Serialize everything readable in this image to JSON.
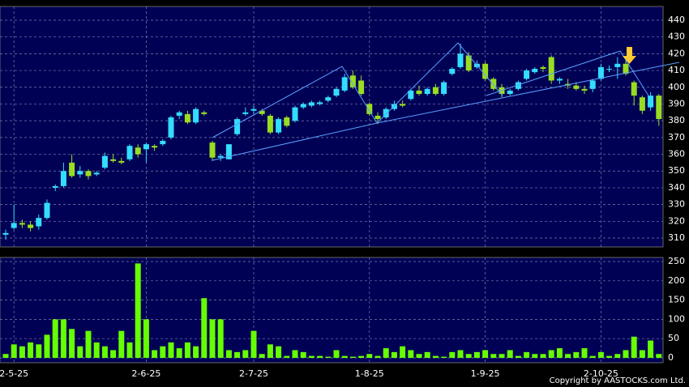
{
  "chart_data": {
    "type": "candlestick",
    "categories": [
      null,
      "2-5-25",
      null,
      null,
      null,
      null,
      null,
      null,
      null,
      null,
      null,
      null,
      null,
      null,
      null,
      null,
      null,
      "2-6-25",
      null,
      null,
      null,
      null,
      null,
      null,
      null,
      null,
      null,
      null,
      null,
      null,
      "2-7-25",
      null,
      null,
      null,
      null,
      null,
      null,
      null,
      null,
      null,
      null,
      null,
      null,
      null,
      "1-8-25",
      null,
      null,
      null,
      null,
      null,
      null,
      null,
      null,
      null,
      null,
      null,
      null,
      null,
      "1-9-25",
      null,
      null,
      null,
      null,
      null,
      null,
      null,
      null,
      null,
      null,
      null,
      null,
      null,
      "2-10-25",
      null,
      null,
      null,
      null,
      null,
      null,
      null
    ],
    "open": [
      312,
      316,
      319,
      318,
      317,
      322,
      340,
      341,
      355,
      348,
      350,
      348,
      352,
      357,
      356,
      357,
      364,
      363,
      365,
      366,
      370,
      383,
      384,
      379,
      385,
      367,
      358,
      357,
      372,
      384,
      386,
      386,
      383,
      373,
      382,
      380,
      388,
      389,
      390,
      392,
      395,
      398,
      407,
      404,
      390,
      383,
      382,
      387,
      390,
      393,
      398,
      396,
      400,
      396,
      408,
      412,
      419,
      412,
      414,
      405,
      400,
      396,
      399,
      405,
      409,
      412,
      418,
      404,
      402,
      401,
      399,
      399,
      405,
      411,
      412,
      414,
      403,
      394,
      388,
      395
    ],
    "high": [
      315,
      330,
      321,
      320,
      324,
      333,
      342,
      355,
      360,
      353,
      351,
      350,
      361,
      360,
      358,
      366,
      366,
      367,
      366,
      369,
      383,
      386,
      386,
      388,
      386,
      368,
      360,
      366,
      382,
      388,
      389,
      387,
      384,
      382,
      383,
      389,
      391,
      392,
      392,
      395,
      400,
      408,
      410,
      407,
      391,
      385,
      388,
      392,
      392,
      399,
      401,
      400,
      402,
      404,
      412,
      426,
      421,
      416,
      415,
      406,
      402,
      399,
      404,
      411,
      412,
      413,
      419,
      406,
      405,
      403,
      401,
      405,
      414,
      413,
      418,
      416,
      404,
      395,
      397,
      396
    ],
    "low": [
      309,
      315,
      316,
      314,
      315,
      321,
      338,
      340,
      346,
      346,
      345,
      347,
      351,
      355,
      354,
      356,
      358,
      355,
      362,
      365,
      369,
      381,
      378,
      378,
      383,
      356,
      356,
      357,
      371,
      383,
      384,
      383,
      372,
      372,
      376,
      379,
      387,
      388,
      389,
      391,
      394,
      397,
      399,
      395,
      383,
      378,
      381,
      386,
      388,
      392,
      395,
      395,
      395,
      395,
      407,
      411,
      409,
      411,
      404,
      398,
      394,
      395,
      398,
      404,
      408,
      409,
      402,
      402,
      399,
      398,
      396,
      397,
      404,
      409,
      405,
      407,
      389,
      384,
      386,
      377
    ],
    "close": [
      313,
      319,
      318,
      316,
      322,
      331,
      341,
      350,
      347,
      350,
      347,
      349,
      359,
      356,
      355,
      365,
      360,
      366,
      364,
      368,
      382,
      385,
      379,
      387,
      384,
      358,
      359,
      366,
      381,
      385,
      387,
      384,
      373,
      381,
      377,
      388,
      390,
      391,
      391,
      394,
      399,
      406,
      400,
      396,
      384,
      381,
      387,
      390,
      389,
      398,
      396,
      399,
      396,
      403,
      411,
      420,
      410,
      414,
      405,
      399,
      396,
      398,
      403,
      410,
      411,
      411,
      404,
      405,
      401,
      399,
      398,
      404,
      412,
      411,
      414,
      408,
      395,
      386,
      395,
      381
    ],
    "volume": [
      10,
      35,
      30,
      40,
      35,
      60,
      100,
      100,
      75,
      30,
      70,
      40,
      30,
      20,
      70,
      40,
      245,
      100,
      20,
      30,
      40,
      25,
      40,
      30,
      155,
      100,
      100,
      20,
      15,
      20,
      70,
      10,
      35,
      30,
      5,
      20,
      15,
      5,
      5,
      3,
      20,
      5,
      3,
      5,
      10,
      5,
      25,
      15,
      30,
      20,
      10,
      15,
      5,
      3,
      15,
      20,
      10,
      15,
      20,
      10,
      10,
      20,
      5,
      15,
      10,
      10,
      20,
      25,
      10,
      15,
      25,
      5,
      15,
      5,
      10,
      20,
      55,
      20,
      45,
      10
    ],
    "up_color": "#33ddff",
    "down_color": "#99dd22",
    "volume_color": "#66ff00",
    "ylim": [
      304.7,
      448.2
    ],
    "yticks": [
      310,
      320,
      330,
      340,
      350,
      360,
      370,
      380,
      390,
      400,
      410,
      420,
      430,
      440
    ],
    "volume_ylim": [
      -12.6,
      260.5
    ],
    "volume_yticks": [
      0,
      50,
      100,
      150,
      200,
      250
    ],
    "grid": true,
    "credit": "Copyright by AASTOCKS.com Ltd."
  }
}
